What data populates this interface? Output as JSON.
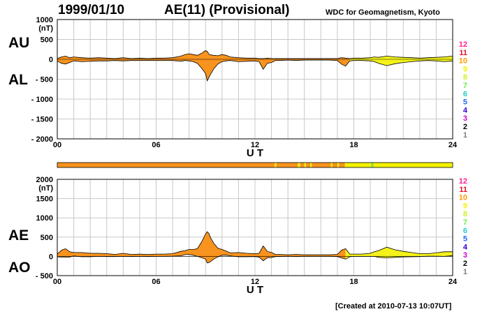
{
  "header": {
    "date": "1999/01/10",
    "title": "AE(11) (Provisional)",
    "org": "WDC for Geomagnetism, Kyoto"
  },
  "footer": {
    "created": "[Created at 2010-07-13 10:07UT]"
  },
  "legend": {
    "labels": [
      "12",
      "11",
      "10",
      "9",
      "8",
      "7",
      "6",
      "5",
      "4",
      "3",
      "2",
      "1"
    ],
    "colors": [
      "#ff1f8f",
      "#e8102a",
      "#ff9900",
      "#f2f200",
      "#d0f020",
      "#66ee44",
      "#22cccc",
      "#2266ff",
      "#3300cc",
      "#cc00cc",
      "#000000",
      "#808080",
      "#c0c0c0"
    ]
  },
  "chart_data": [
    {
      "type": "area",
      "panel": "AU/AL",
      "labels": {
        "upper": "AU",
        "lower": "AL"
      },
      "unit": "(nT)",
      "xlabel": "U T",
      "xlim": [
        0,
        24
      ],
      "ylim": [
        -2000,
        1000
      ],
      "xticks": [
        "00",
        "06",
        "12",
        "18",
        "24"
      ],
      "yticks": [
        {
          "v": 1000,
          "label": "1000"
        },
        {
          "v": 500,
          "label": "500"
        },
        {
          "v": 0,
          "label": "0"
        },
        {
          "v": -500,
          "label": "- 500"
        },
        {
          "v": -1000,
          "label": "- 1000"
        },
        {
          "v": -1500,
          "label": "- 1500"
        },
        {
          "v": -2000,
          "label": "- 2000"
        }
      ],
      "x": [
        0,
        0.25,
        0.5,
        0.75,
        1,
        1.5,
        2,
        2.5,
        3,
        3.5,
        4,
        4.5,
        5,
        5.5,
        6,
        6.5,
        7,
        7.5,
        7.75,
        8,
        8.25,
        8.5,
        8.75,
        9,
        9.1,
        9.2,
        9.3,
        9.5,
        9.75,
        10,
        10.25,
        10.5,
        11,
        11.5,
        12,
        12.25,
        12.5,
        12.75,
        13,
        13.25,
        13.5,
        14,
        14.5,
        15,
        15.5,
        16,
        16.5,
        17,
        17.25,
        17.5,
        17.75,
        18,
        18.5,
        19,
        19.25,
        19.5,
        20,
        20.5,
        21,
        21.5,
        22,
        22.5,
        23,
        23.5,
        24
      ],
      "au": [
        20,
        60,
        80,
        40,
        60,
        40,
        30,
        40,
        30,
        20,
        40,
        20,
        30,
        20,
        30,
        30,
        40,
        80,
        120,
        140,
        120,
        100,
        150,
        220,
        200,
        130,
        110,
        100,
        90,
        120,
        100,
        60,
        40,
        30,
        30,
        20,
        20,
        30,
        20,
        20,
        20,
        20,
        20,
        20,
        20,
        20,
        20,
        20,
        40,
        30,
        20,
        30,
        30,
        40,
        60,
        50,
        80,
        60,
        50,
        40,
        30,
        40,
        50,
        60,
        80
      ],
      "al": [
        -40,
        -100,
        -120,
        -80,
        -40,
        -60,
        -50,
        -40,
        -40,
        -30,
        -40,
        -30,
        -30,
        -30,
        -30,
        -30,
        -30,
        -50,
        -30,
        -40,
        -60,
        -100,
        -220,
        -360,
        -540,
        -460,
        -380,
        -240,
        -120,
        -60,
        -40,
        -30,
        -60,
        -50,
        -40,
        -60,
        -250,
        -100,
        -80,
        -30,
        -30,
        -20,
        -30,
        -20,
        -20,
        -20,
        -20,
        -30,
        -120,
        -170,
        -40,
        -30,
        -30,
        -40,
        -60,
        -100,
        -160,
        -110,
        -80,
        -60,
        -40,
        -30,
        -40,
        -60,
        -40
      ]
    },
    {
      "type": "bar",
      "panel": "quality",
      "x_start": [
        0,
        13.2,
        13.3,
        14.6,
        14.75,
        15.0,
        15.1,
        15.35,
        15.45,
        16.6,
        16.7,
        17.0,
        17.1,
        17.45,
        19.05,
        19.2
      ],
      "x_end": [
        13.2,
        13.3,
        14.6,
        14.75,
        15.0,
        15.1,
        15.35,
        15.45,
        16.6,
        16.7,
        17.0,
        17.1,
        17.45,
        19.05,
        19.2,
        24
      ],
      "colors": [
        "#f7931e",
        "#f2f200",
        "#f7931e",
        "#f2f200",
        "#f7931e",
        "#f2f200",
        "#f7931e",
        "#f2f200",
        "#f7931e",
        "#f2f200",
        "#f7931e",
        "#f2f200",
        "#f7931e",
        "#f2f200",
        "#9adf30",
        "#f2f200"
      ]
    },
    {
      "type": "area",
      "panel": "AE/AO",
      "labels": {
        "upper": "AE",
        "lower": "AO"
      },
      "unit": "(nT)",
      "xlabel": "U T",
      "xlim": [
        0,
        24
      ],
      "ylim": [
        -500,
        2000
      ],
      "xticks": [
        "00",
        "06",
        "12",
        "18",
        "24"
      ],
      "yticks": [
        {
          "v": 2000,
          "label": "2000"
        },
        {
          "v": 1500,
          "label": "1500"
        },
        {
          "v": 1000,
          "label": "1000"
        },
        {
          "v": 500,
          "label": "500"
        },
        {
          "v": 0,
          "label": "0"
        },
        {
          "v": -500,
          "label": "- 500"
        }
      ],
      "x": [
        0,
        0.25,
        0.5,
        0.75,
        1,
        1.5,
        2,
        2.5,
        3,
        3.5,
        4,
        4.5,
        5,
        5.5,
        6,
        6.5,
        7,
        7.5,
        7.75,
        8,
        8.25,
        8.5,
        8.75,
        9,
        9.1,
        9.2,
        9.3,
        9.5,
        9.75,
        10,
        10.25,
        10.5,
        11,
        11.5,
        12,
        12.25,
        12.5,
        12.75,
        13,
        13.25,
        13.5,
        14,
        14.5,
        15,
        15.5,
        16,
        16.5,
        17,
        17.25,
        17.5,
        17.75,
        18,
        18.5,
        19,
        19.25,
        19.5,
        20,
        20.5,
        21,
        21.5,
        22,
        22.5,
        23,
        23.5,
        24
      ],
      "ae": [
        60,
        160,
        200,
        120,
        100,
        100,
        80,
        80,
        70,
        50,
        80,
        50,
        60,
        50,
        60,
        60,
        70,
        130,
        150,
        180,
        180,
        200,
        370,
        580,
        640,
        600,
        490,
        340,
        210,
        180,
        140,
        90,
        100,
        80,
        70,
        80,
        270,
        130,
        100,
        50,
        50,
        40,
        50,
        40,
        40,
        40,
        40,
        50,
        160,
        200,
        60,
        60,
        60,
        80,
        120,
        150,
        240,
        170,
        130,
        100,
        70,
        70,
        90,
        120,
        120
      ],
      "ao": [
        -10,
        -20,
        -20,
        -20,
        10,
        -10,
        -10,
        0,
        -5,
        -5,
        0,
        -5,
        0,
        -5,
        0,
        0,
        5,
        15,
        45,
        50,
        30,
        0,
        -35,
        -70,
        -170,
        -165,
        -135,
        -70,
        -15,
        30,
        30,
        15,
        -10,
        -10,
        -5,
        -20,
        -115,
        -35,
        -30,
        -5,
        -5,
        0,
        -5,
        0,
        0,
        0,
        0,
        -5,
        -40,
        -70,
        -10,
        0,
        0,
        0,
        0,
        -25,
        -40,
        -25,
        -15,
        -10,
        -5,
        5,
        5,
        0,
        20
      ],
      "ae_yellow_from": 17.5
    }
  ]
}
